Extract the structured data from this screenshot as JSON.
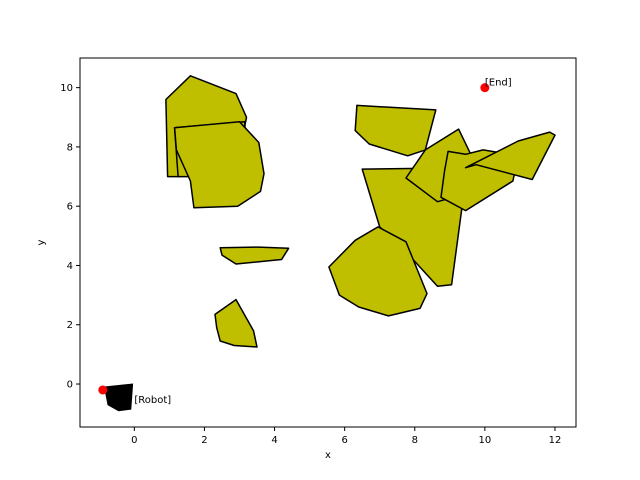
{
  "chart_data": {
    "type": "scatter",
    "title": "",
    "xlabel": "x",
    "ylabel": "y",
    "xlim": [
      -1.55,
      12.6
    ],
    "ylim": [
      -1.45,
      11.0
    ],
    "xticks": [
      0,
      2,
      4,
      6,
      8,
      10,
      12
    ],
    "yticks": [
      0,
      2,
      4,
      6,
      8,
      10
    ],
    "grid": false,
    "obstacle_color": "#bfbf00",
    "edge_color": "#000000",
    "robot_color": "#000000",
    "marker_color": "#ff0000",
    "obstacles": [
      [
        [
          0.9,
          9.6
        ],
        [
          1.6,
          10.4
        ],
        [
          2.9,
          9.8
        ],
        [
          3.2,
          9.0
        ],
        [
          3.0,
          7.8
        ],
        [
          1.3,
          7.0
        ],
        [
          0.95,
          7.0
        ]
      ],
      [
        [
          1.15,
          8.65
        ],
        [
          3.15,
          8.85
        ],
        [
          3.2,
          7.75
        ],
        [
          1.9,
          7.0
        ],
        [
          1.25,
          7.0
        ]
      ],
      [
        [
          1.2,
          7.9
        ],
        [
          1.6,
          6.85
        ],
        [
          1.7,
          5.95
        ],
        [
          2.95,
          6.0
        ],
        [
          3.6,
          6.5
        ],
        [
          3.7,
          7.1
        ],
        [
          3.55,
          8.15
        ],
        [
          3.0,
          8.85
        ],
        [
          1.15,
          8.65
        ]
      ],
      [
        [
          2.45,
          4.6
        ],
        [
          3.55,
          4.62
        ],
        [
          4.4,
          4.58
        ],
        [
          4.2,
          4.2
        ],
        [
          2.9,
          4.05
        ],
        [
          2.5,
          4.35
        ]
      ],
      [
        [
          2.3,
          2.35
        ],
        [
          2.9,
          2.85
        ],
        [
          3.4,
          1.8
        ],
        [
          3.5,
          1.25
        ],
        [
          2.85,
          1.3
        ],
        [
          2.45,
          1.45
        ],
        [
          2.35,
          1.9
        ]
      ],
      [
        [
          6.35,
          9.4
        ],
        [
          8.6,
          9.25
        ],
        [
          8.3,
          7.9
        ],
        [
          7.8,
          7.7
        ],
        [
          6.7,
          8.1
        ],
        [
          6.3,
          8.55
        ]
      ],
      [
        [
          6.5,
          7.25
        ],
        [
          9.5,
          7.3
        ],
        [
          9.05,
          3.35
        ],
        [
          8.65,
          3.3
        ],
        [
          7.95,
          4.2
        ],
        [
          7.0,
          5.3
        ]
      ],
      [
        [
          5.55,
          3.95
        ],
        [
          6.3,
          4.85
        ],
        [
          6.95,
          5.3
        ],
        [
          7.75,
          4.8
        ],
        [
          8.35,
          3.05
        ],
        [
          8.15,
          2.55
        ],
        [
          7.25,
          2.3
        ],
        [
          6.4,
          2.6
        ],
        [
          5.85,
          3.0
        ]
      ],
      [
        [
          7.75,
          6.95
        ],
        [
          8.65,
          6.15
        ],
        [
          9.25,
          6.35
        ],
        [
          9.55,
          6.7
        ],
        [
          9.7,
          7.5
        ],
        [
          9.25,
          8.6
        ],
        [
          8.3,
          7.9
        ],
        [
          7.75,
          6.95
        ]
      ],
      [
        [
          8.95,
          7.85
        ],
        [
          9.45,
          7.75
        ],
        [
          9.95,
          7.9
        ],
        [
          10.95,
          7.7
        ],
        [
          10.8,
          6.85
        ],
        [
          9.45,
          5.85
        ],
        [
          8.75,
          6.3
        ],
        [
          8.85,
          7.2
        ]
      ],
      [
        [
          9.45,
          7.3
        ],
        [
          10.95,
          8.2
        ],
        [
          11.85,
          8.5
        ],
        [
          12.0,
          8.4
        ],
        [
          11.35,
          6.9
        ],
        [
          9.75,
          7.4
        ]
      ]
    ],
    "robot": [
      [
        -0.85,
        -0.1
      ],
      [
        -0.05,
        0.0
      ],
      [
        -0.1,
        -0.85
      ],
      [
        -0.45,
        -0.9
      ],
      [
        -0.75,
        -0.7
      ]
    ],
    "points": [
      {
        "x": -0.9,
        "y": -0.2,
        "label": "[Robot]"
      },
      {
        "x": 10.0,
        "y": 10.0,
        "label": "[End]"
      }
    ]
  }
}
